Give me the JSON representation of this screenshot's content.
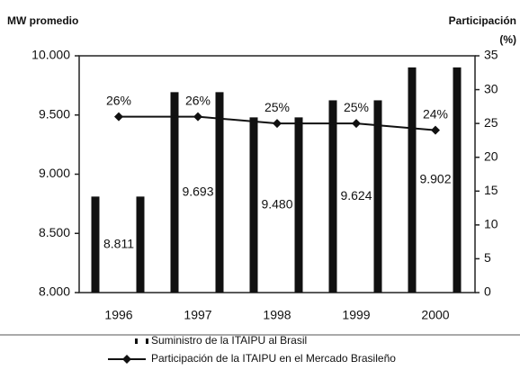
{
  "chart_data": {
    "type": "bar-line",
    "y_label": "MW promedio",
    "y2_label": "Participación",
    "y2_unit": "(%)",
    "categories": [
      "1996",
      "1997",
      "1998",
      "1999",
      "2000"
    ],
    "series": [
      {
        "name": "Suministro de la ITAIPU al Brasil",
        "type": "bar",
        "color": "#111111",
        "values": [
          8811,
          9693,
          9480,
          9624,
          9902
        ],
        "value_labels": [
          "8.811",
          "9.693",
          "9.480",
          "9.624",
          "9.902"
        ]
      },
      {
        "name": "Participación de la ITAIPU en el Mercado Brasileño",
        "type": "line",
        "axis": "y2",
        "color": "#111111",
        "values": [
          26,
          26,
          25,
          25,
          24
        ],
        "value_labels": [
          "26%",
          "26%",
          "25%",
          "25%",
          "24%"
        ]
      }
    ],
    "ylim": [
      8000,
      10000
    ],
    "yticks": [
      {
        "value": 8000,
        "label": "8.000"
      },
      {
        "value": 8500,
        "label": "8.500"
      },
      {
        "value": 9000,
        "label": "9.000"
      },
      {
        "value": 9500,
        "label": "9.500"
      },
      {
        "value": 10000,
        "label": "10.000"
      }
    ],
    "y2lim": [
      0,
      35
    ],
    "y2ticks": [
      0,
      5,
      10,
      15,
      20,
      25,
      30,
      35
    ]
  }
}
